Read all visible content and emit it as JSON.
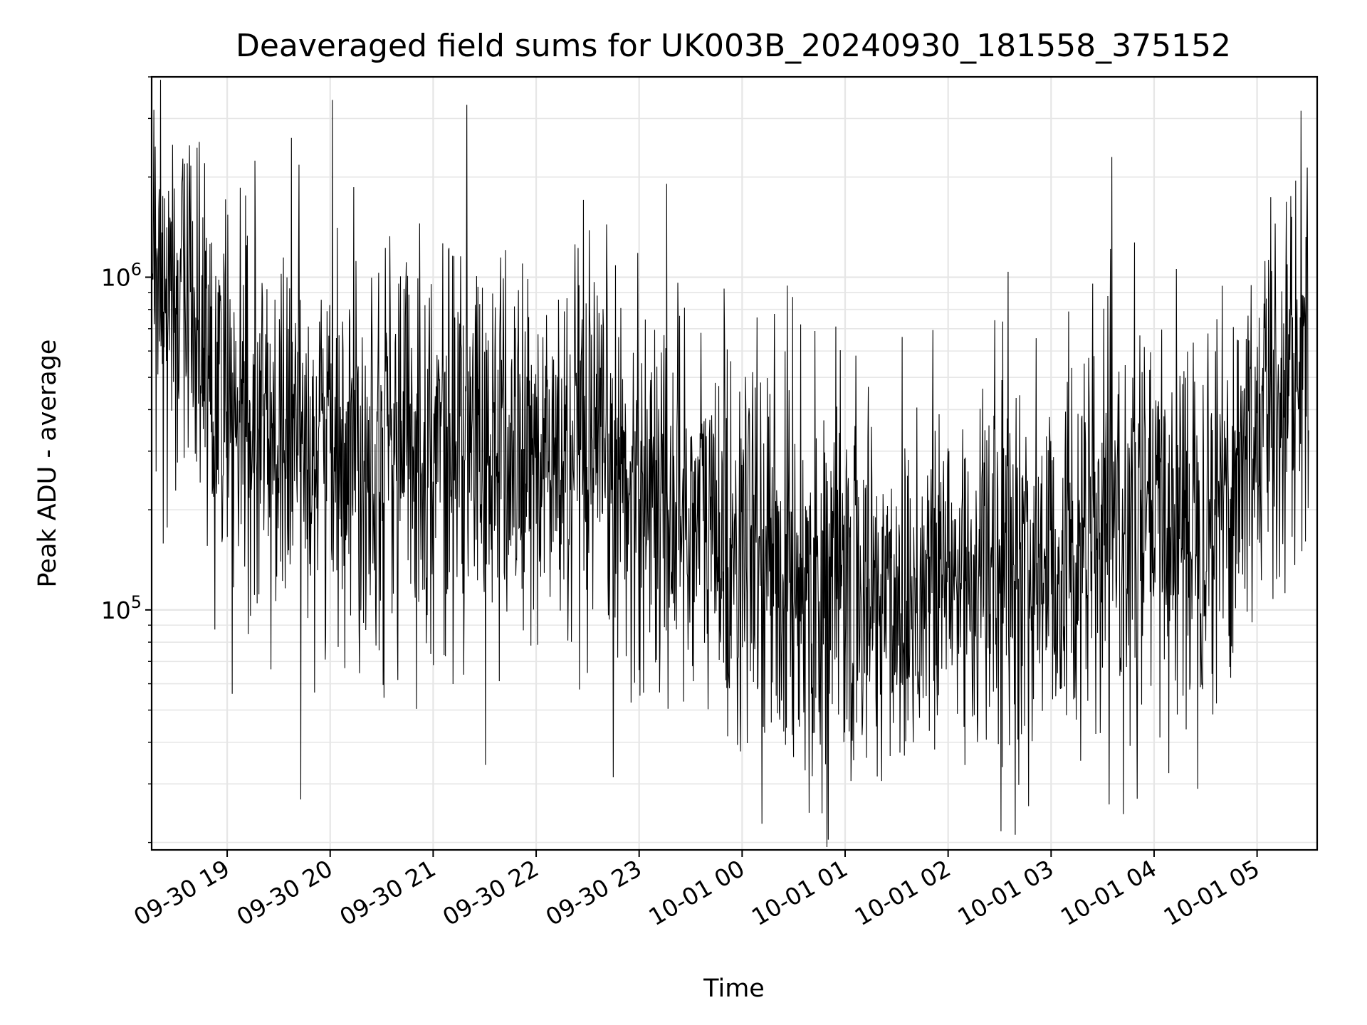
{
  "chart_data": {
    "type": "line",
    "title": "Deaveraged field sums for UK003B_20240930_181558_375152",
    "xlabel": "Time",
    "ylabel": "Peak ADU - average",
    "yscale": "log",
    "ylim": [
      19000,
      4000000
    ],
    "xlim": [
      "2024-09-30T18:16",
      "2024-10-01T05:35"
    ],
    "grid": true,
    "line_color": "#000000",
    "x_ticks": [
      {
        "value": "2024-09-30T19:00",
        "label": "09-30 19"
      },
      {
        "value": "2024-09-30T20:00",
        "label": "09-30 20"
      },
      {
        "value": "2024-09-30T21:00",
        "label": "09-30 21"
      },
      {
        "value": "2024-09-30T22:00",
        "label": "09-30 22"
      },
      {
        "value": "2024-09-30T23:00",
        "label": "09-30 23"
      },
      {
        "value": "2024-10-01T00:00",
        "label": "10-01 00"
      },
      {
        "value": "2024-10-01T01:00",
        "label": "10-01 01"
      },
      {
        "value": "2024-10-01T02:00",
        "label": "10-01 02"
      },
      {
        "value": "2024-10-01T03:00",
        "label": "10-01 03"
      },
      {
        "value": "2024-10-01T04:00",
        "label": "10-01 04"
      },
      {
        "value": "2024-10-01T05:00",
        "label": "10-01 05"
      }
    ],
    "y_ticks": [
      {
        "value": 100000,
        "base": "10",
        "exp": "5"
      },
      {
        "value": 1000000,
        "base": "10",
        "exp": "6"
      }
    ],
    "series": [
      {
        "x": [
          "2024-09-30T18:16",
          "2024-09-30T18:30",
          "2024-09-30T18:45",
          "2024-09-30T19:00",
          "2024-09-30T19:15",
          "2024-09-30T19:30",
          "2024-09-30T19:45",
          "2024-09-30T20:00",
          "2024-09-30T20:15",
          "2024-09-30T20:30",
          "2024-09-30T20:45",
          "2024-09-30T21:00",
          "2024-09-30T21:15",
          "2024-09-30T21:30",
          "2024-09-30T21:45",
          "2024-09-30T22:00",
          "2024-09-30T22:15",
          "2024-09-30T22:30",
          "2024-09-30T22:45",
          "2024-09-30T23:00",
          "2024-09-30T23:15",
          "2024-09-30T23:30",
          "2024-09-30T23:45",
          "2024-10-01T00:00",
          "2024-10-01T00:15",
          "2024-10-01T00:30",
          "2024-10-01T00:45",
          "2024-10-01T01:00",
          "2024-10-01T01:15",
          "2024-10-01T01:30",
          "2024-10-01T01:45",
          "2024-10-01T02:00",
          "2024-10-01T02:15",
          "2024-10-01T02:30",
          "2024-10-01T02:45",
          "2024-10-01T03:00",
          "2024-10-01T03:15",
          "2024-10-01T03:30",
          "2024-10-01T03:45",
          "2024-10-01T04:00",
          "2024-10-01T04:15",
          "2024-10-01T04:30",
          "2024-10-01T04:45",
          "2024-10-01T05:00",
          "2024-10-01T05:15",
          "2024-10-01T05:30"
        ],
        "y": [
          800000,
          900000,
          700000,
          350000,
          320000,
          330000,
          340000,
          340000,
          330000,
          320000,
          320000,
          320000,
          320000,
          300000,
          290000,
          280000,
          270000,
          260000,
          250000,
          240000,
          220000,
          200000,
          170000,
          150000,
          140000,
          130000,
          120000,
          115000,
          110000,
          110000,
          120000,
          125000,
          130000,
          135000,
          130000,
          140000,
          150000,
          160000,
          170000,
          175000,
          190000,
          210000,
          240000,
          350000,
          500000,
          600000
        ]
      }
    ]
  }
}
